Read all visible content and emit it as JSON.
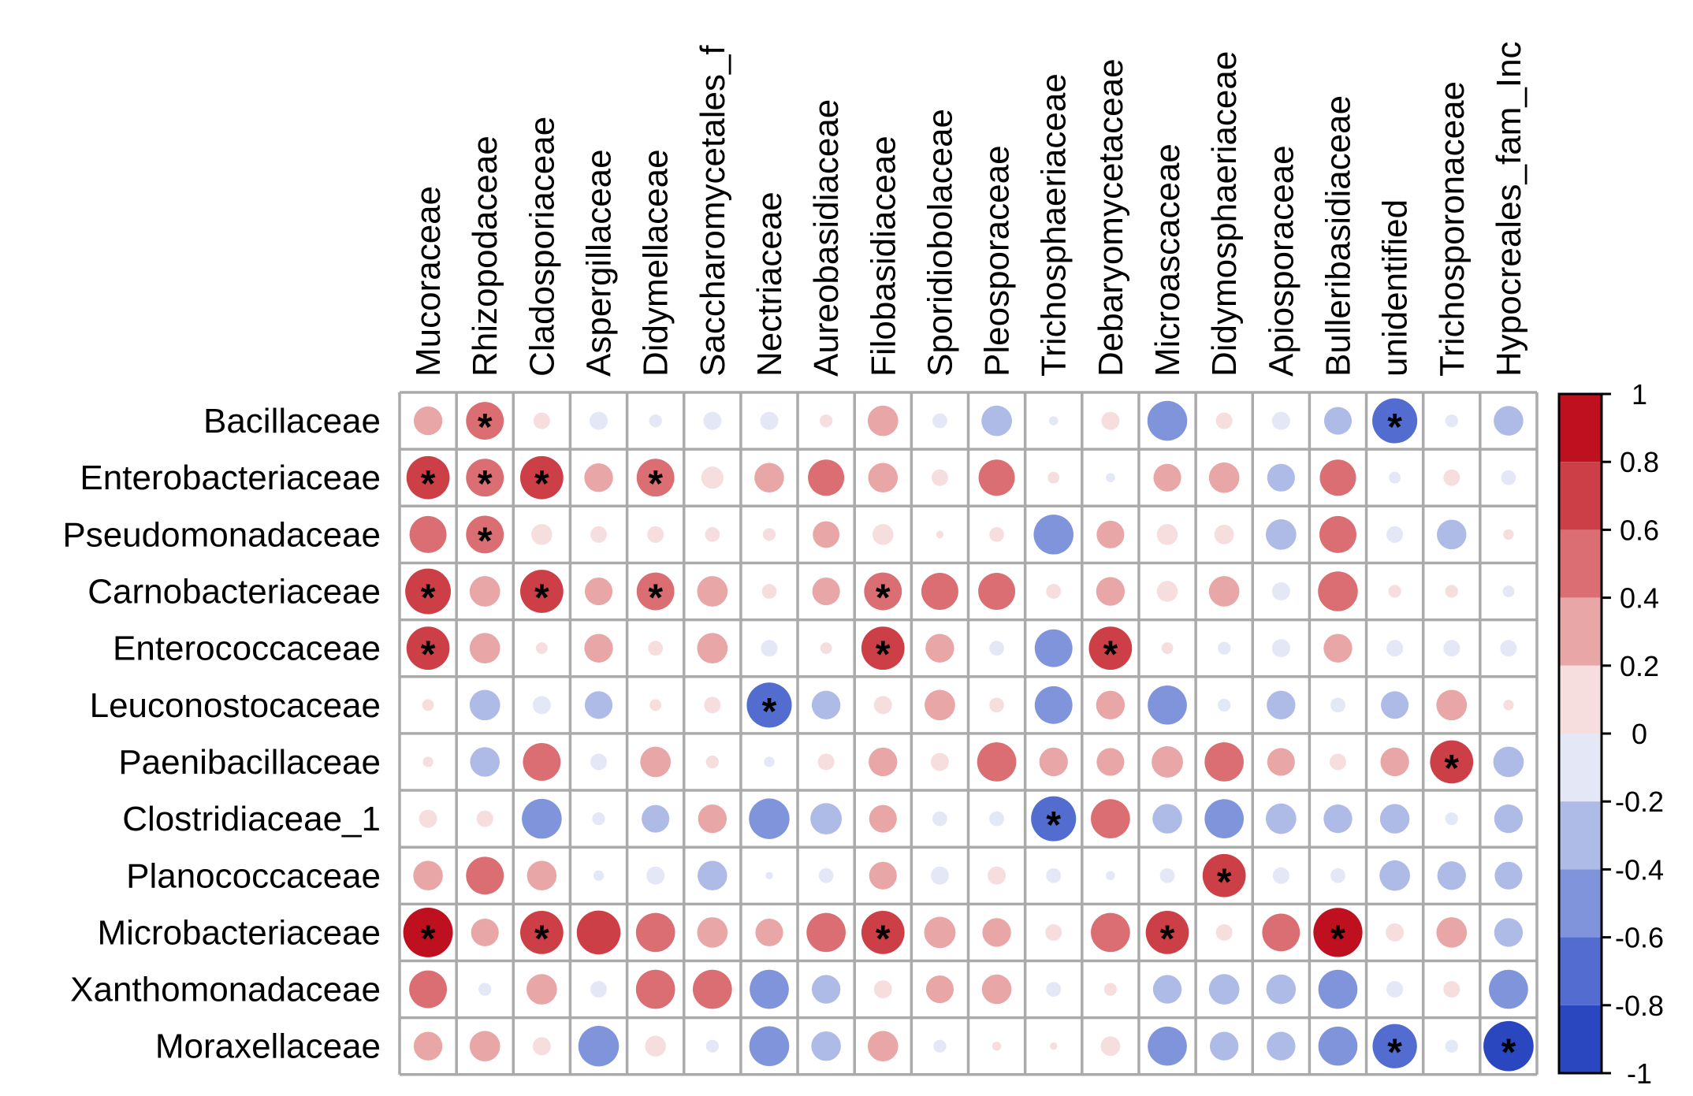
{
  "chart_data": {
    "type": "heatmap",
    "subtype": "correlation-circle-matrix",
    "title": "",
    "rows": [
      "Bacillaceae",
      "Enterobacteriaceae",
      "Pseudomonadaceae",
      "Carnobacteriaceae",
      "Enterococcaceae",
      "Leuconostocaceae",
      "Paenibacillaceae",
      "Clostridiaceae_1",
      "Planococcaceae",
      "Microbacteriaceae",
      "Xanthomonadaceae",
      "Moraxellaceae"
    ],
    "columns": [
      "Mucoraceae",
      "Rhizopodaceae",
      "Cladosporiaceae",
      "Aspergillaceae",
      "Didymellaceae",
      "Saccharomycetales_fam_Incertae_sedis",
      "Nectriaceae",
      "Aureobasidiaceae",
      "Filobasidiaceae",
      "Sporidiobolaceae",
      "Pleosporaceae",
      "Trichosphaeriaceae",
      "Debaryomycetaceae",
      "Microascaceae",
      "Didymosphaeriaceae",
      "Apiosporaceae",
      "Bulleribasidiaceae",
      "unidentified",
      "Trichosporonaceae",
      "Hypocreales_fam_Incertae_sedis"
    ],
    "column_labels_visible": [
      "Mucoraceae",
      "Rhizopodaceae",
      "Cladosporiaceae",
      "Aspergillaceae",
      "Didymellaceae",
      "Saccharomycetales_f",
      "Nectriaceae",
      "Aureobasidiaceae",
      "Filobasidiaceae",
      "Sporidiobolaceae",
      "Pleosporaceae",
      "Trichosphaeriaceae",
      "Debaryomycetaceae",
      "Microascaceae",
      "Didymosphaeriaceae",
      "Apiosporaceae",
      "Bulleribasidiaceae",
      "unidentified",
      "Trichosporonaceae",
      "Hypocreales_fam_Inc"
    ],
    "values": [
      [
        0.3,
        0.52,
        0.1,
        -0.12,
        -0.06,
        -0.12,
        -0.12,
        0.06,
        0.34,
        -0.08,
        -0.34,
        -0.03,
        0.12,
        -0.58,
        0.1,
        -0.12,
        -0.28,
        -0.74,
        -0.06,
        -0.32
      ],
      [
        0.68,
        0.52,
        0.68,
        0.3,
        0.52,
        0.18,
        0.32,
        0.48,
        0.32,
        0.1,
        0.48,
        0.05,
        -0.03,
        0.28,
        0.34,
        -0.28,
        0.48,
        -0.05,
        0.1,
        -0.08
      ],
      [
        0.5,
        0.52,
        0.16,
        0.1,
        0.1,
        0.08,
        0.06,
        0.26,
        0.16,
        0.02,
        0.08,
        -0.58,
        0.28,
        0.16,
        0.14,
        -0.34,
        0.5,
        -0.1,
        -0.32,
        0.04
      ],
      [
        0.76,
        0.34,
        0.68,
        0.28,
        0.52,
        0.34,
        0.08,
        0.28,
        0.52,
        0.5,
        0.5,
        0.08,
        0.3,
        0.16,
        0.34,
        -0.12,
        0.58,
        0.06,
        0.06,
        -0.05
      ],
      [
        0.68,
        0.34,
        0.05,
        0.3,
        0.08,
        0.34,
        -0.1,
        0.05,
        0.68,
        0.3,
        -0.08,
        -0.52,
        0.68,
        0.05,
        -0.06,
        -0.12,
        0.3,
        -0.1,
        -0.1,
        -0.1
      ],
      [
        0.05,
        -0.34,
        -0.12,
        -0.28,
        0.05,
        0.1,
        -0.74,
        -0.3,
        0.12,
        0.34,
        0.08,
        -0.52,
        0.3,
        -0.56,
        -0.06,
        -0.3,
        -0.08,
        -0.28,
        0.34,
        0.04
      ],
      [
        0.04,
        -0.32,
        0.52,
        -0.1,
        0.34,
        0.06,
        -0.04,
        0.1,
        0.3,
        0.12,
        0.56,
        0.3,
        0.28,
        0.36,
        0.56,
        0.28,
        0.1,
        0.3,
        0.68,
        -0.34
      ],
      [
        0.12,
        0.1,
        -0.58,
        -0.06,
        -0.28,
        0.3,
        -0.6,
        -0.36,
        0.28,
        -0.08,
        -0.08,
        -0.74,
        0.56,
        -0.32,
        -0.56,
        -0.34,
        -0.3,
        -0.32,
        -0.06,
        -0.3
      ],
      [
        0.32,
        0.52,
        0.32,
        -0.04,
        -0.12,
        -0.32,
        -0.02,
        -0.08,
        0.28,
        -0.12,
        0.12,
        -0.08,
        -0.03,
        -0.08,
        0.68,
        -0.1,
        -0.08,
        -0.34,
        -0.3,
        -0.28
      ],
      [
        0.9,
        0.28,
        0.68,
        0.7,
        0.56,
        0.34,
        0.28,
        0.56,
        0.68,
        0.36,
        0.3,
        0.1,
        0.56,
        0.68,
        0.1,
        0.52,
        0.88,
        0.12,
        0.34,
        -0.3
      ],
      [
        0.52,
        -0.06,
        0.34,
        -0.1,
        0.56,
        0.56,
        -0.56,
        -0.3,
        0.12,
        0.28,
        0.32,
        -0.08,
        0.06,
        -0.3,
        -0.34,
        -0.32,
        -0.56,
        -0.1,
        0.1,
        -0.56
      ],
      [
        0.3,
        0.34,
        0.12,
        -0.6,
        0.16,
        -0.06,
        -0.58,
        -0.32,
        0.34,
        -0.06,
        0.03,
        0.02,
        0.14,
        -0.56,
        -0.3,
        -0.3,
        -0.56,
        -0.72,
        -0.06,
        -0.92
      ]
    ],
    "significant": [
      [
        0,
        1
      ],
      [
        0,
        17
      ],
      [
        1,
        0
      ],
      [
        1,
        1
      ],
      [
        1,
        2
      ],
      [
        1,
        4
      ],
      [
        2,
        1
      ],
      [
        3,
        0
      ],
      [
        3,
        2
      ],
      [
        3,
        4
      ],
      [
        3,
        8
      ],
      [
        4,
        0
      ],
      [
        4,
        8
      ],
      [
        4,
        12
      ],
      [
        5,
        6
      ],
      [
        6,
        18
      ],
      [
        7,
        11
      ],
      [
        8,
        14
      ],
      [
        9,
        0
      ],
      [
        9,
        2
      ],
      [
        9,
        8
      ],
      [
        9,
        13
      ],
      [
        9,
        16
      ],
      [
        11,
        17
      ],
      [
        11,
        19
      ]
    ],
    "significance_marker": "*",
    "colorbar": {
      "range": [
        -1,
        1
      ],
      "ticks": [
        "1",
        "0.8",
        "0.6",
        "0.4",
        "0.2",
        "0",
        "-0.2",
        "-0.4",
        "-0.6",
        "-0.8",
        "-1"
      ],
      "tick_values": [
        1,
        0.8,
        0.6,
        0.4,
        0.2,
        0,
        -0.2,
        -0.4,
        -0.6,
        -0.8,
        -1
      ],
      "bands": [
        {
          "from": 0.8,
          "to": 1.0,
          "color": "#BE101F"
        },
        {
          "from": 0.6,
          "to": 0.8,
          "color": "#CC3F46"
        },
        {
          "from": 0.4,
          "to": 0.6,
          "color": "#DA6E72"
        },
        {
          "from": 0.2,
          "to": 0.4,
          "color": "#E8A6A7"
        },
        {
          "from": 0.0,
          "to": 0.2,
          "color": "#F6DEDF"
        },
        {
          "from": -0.2,
          "to": 0.0,
          "color": "#E3E7F6"
        },
        {
          "from": -0.4,
          "to": -0.2,
          "color": "#AEBBE7"
        },
        {
          "from": -0.6,
          "to": -0.4,
          "color": "#7F94DB"
        },
        {
          "from": -0.8,
          "to": -0.6,
          "color": "#536CCF"
        },
        {
          "from": -1.0,
          "to": -0.8,
          "color": "#2B47C0"
        }
      ],
      "placement": "right"
    },
    "grid": true,
    "grid_color": "#AAAAAA"
  }
}
